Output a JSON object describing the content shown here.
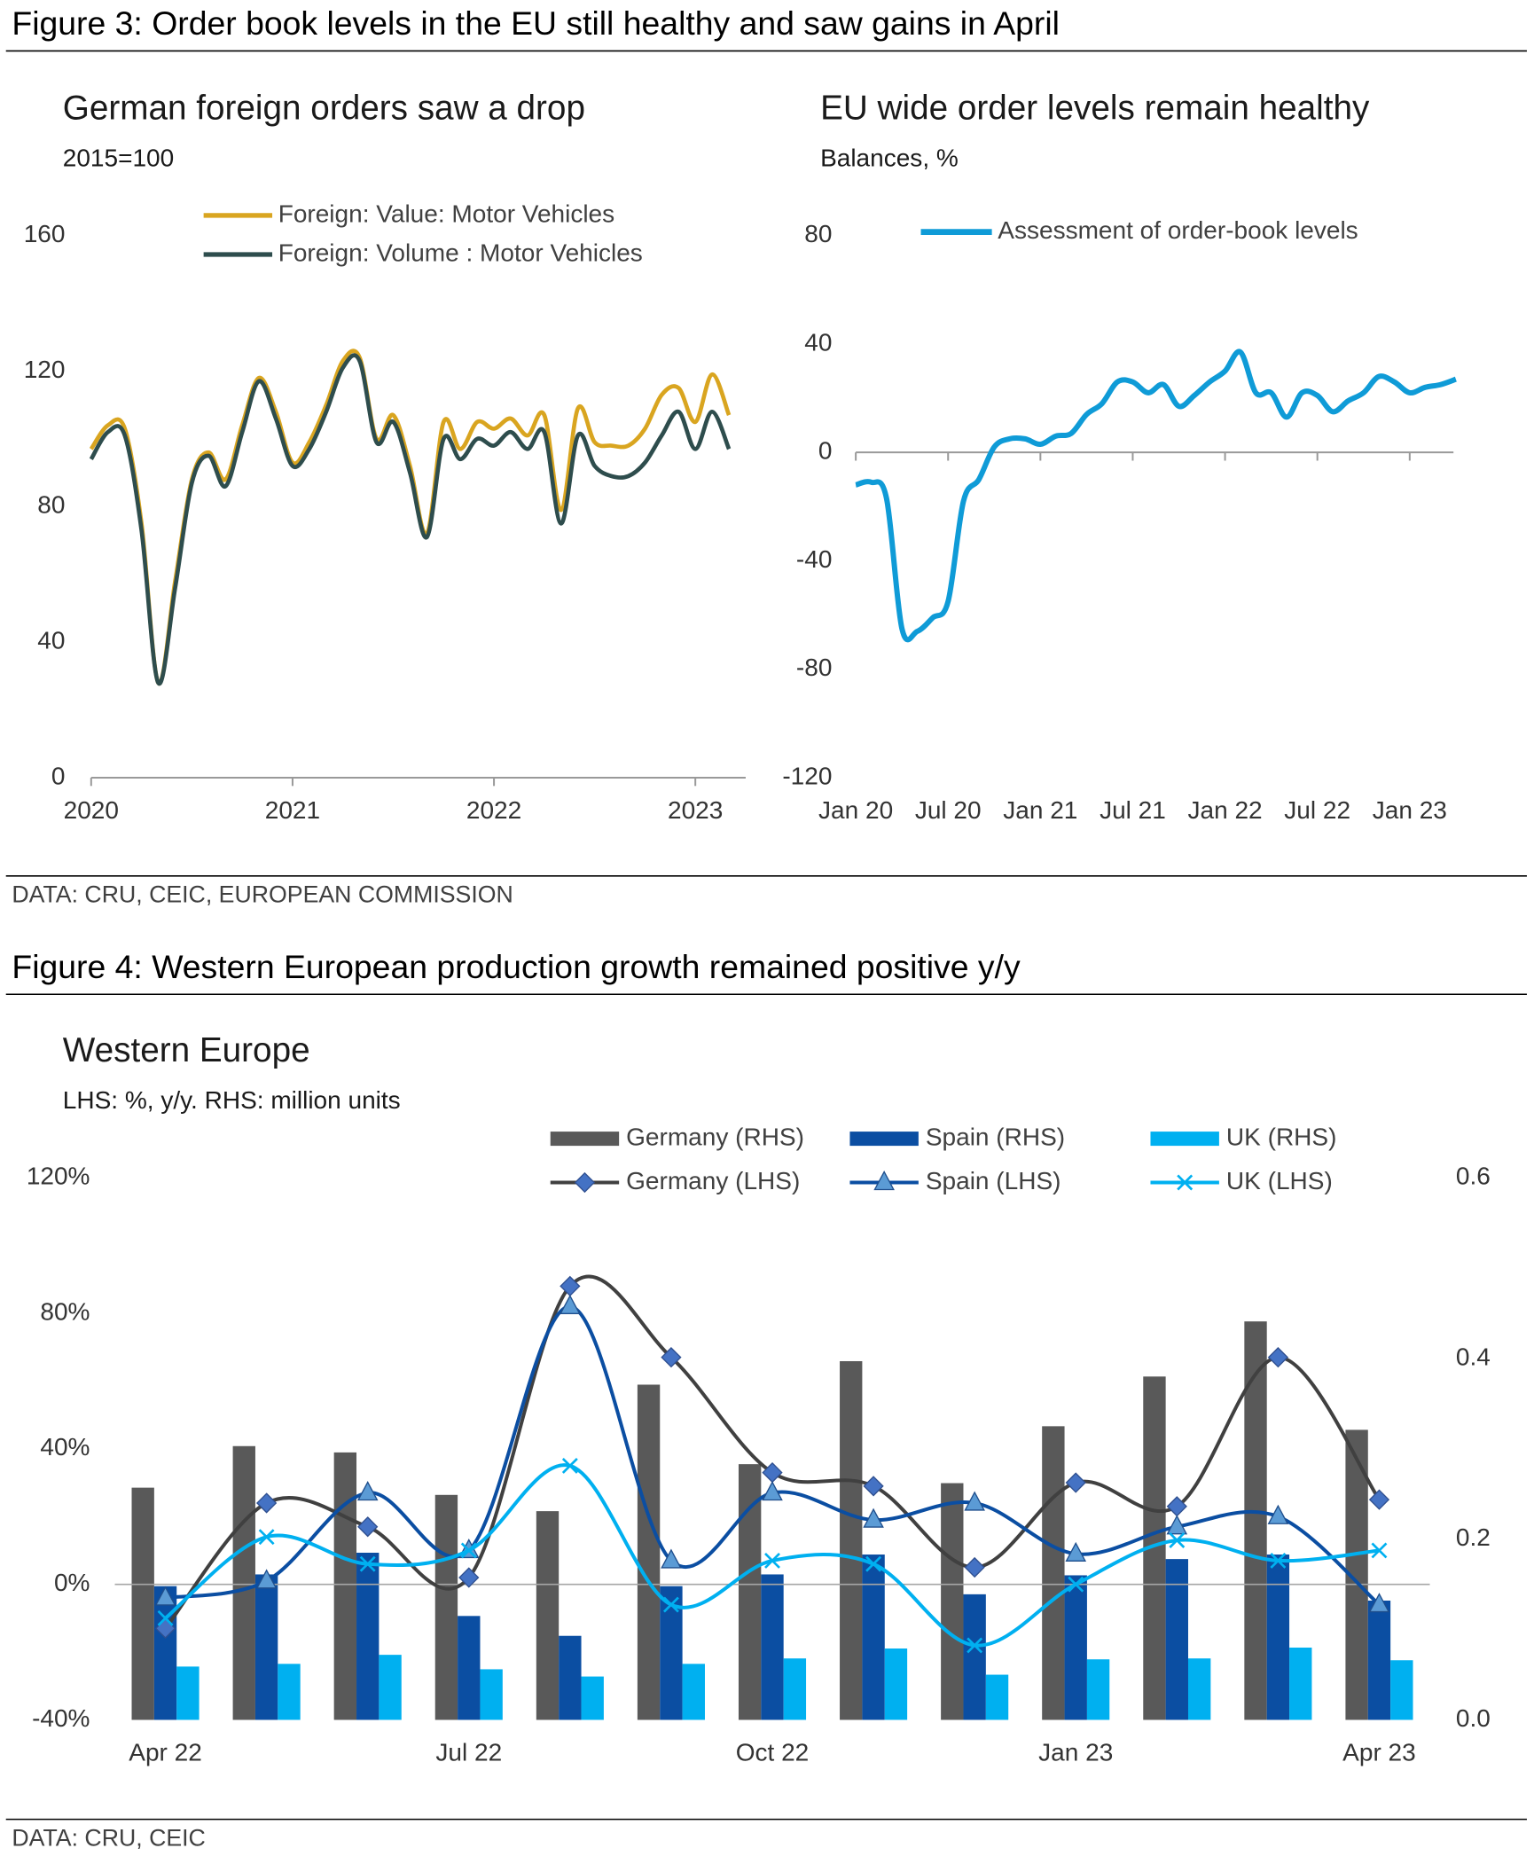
{
  "figures": [
    {
      "title": "Figure 3: Order book levels in the EU still healthy and saw gains in April",
      "source": "DATA: CRU, CEIC, EUROPEAN COMMISSION"
    },
    {
      "title": "Figure 4: Western European production growth remained positive y/y",
      "source": "DATA: CRU, CEIC"
    }
  ],
  "chart_data": [
    {
      "type": "line",
      "title": "German foreign orders saw a drop",
      "subtitle": "2015=100",
      "x": [
        2020,
        2020.083,
        2020.167,
        2020.25,
        2020.333,
        2020.417,
        2020.5,
        2020.583,
        2020.667,
        2020.75,
        2020.833,
        2020.917,
        2021,
        2021.083,
        2021.167,
        2021.25,
        2021.333,
        2021.417,
        2021.5,
        2021.583,
        2021.667,
        2021.75,
        2021.833,
        2021.917,
        2022,
        2022.083,
        2022.167,
        2022.25,
        2022.333,
        2022.417,
        2022.5,
        2022.583,
        2022.667,
        2022.75,
        2022.833,
        2022.917,
        2023,
        2023.083,
        2023.167
      ],
      "xlim": [
        2020,
        2023.25
      ],
      "xticks": [
        2020,
        2021,
        2022,
        2023
      ],
      "ylim": [
        0,
        160
      ],
      "yticks": [
        0,
        40,
        80,
        120,
        160
      ],
      "series": [
        {
          "name": "Foreign: Value: Motor Vehicles",
          "color": "#d9a520",
          "values": [
            97,
            104,
            103,
            75,
            28,
            58,
            88,
            96,
            88,
            104,
            118,
            108,
            93,
            99,
            110,
            123,
            124,
            100,
            107,
            92,
            72,
            105,
            97,
            105,
            103,
            106,
            101,
            107,
            79,
            109,
            99,
            98,
            98,
            103,
            113,
            115,
            105,
            119,
            107
          ]
        },
        {
          "name": "Foreign: Volume : Motor Vehicles",
          "color": "#2e4d4d",
          "values": [
            94,
            102,
            101,
            73,
            28,
            56,
            87,
            95,
            86,
            102,
            117,
            106,
            92,
            97,
            108,
            121,
            123,
            99,
            105,
            90,
            71,
            100,
            94,
            100,
            98,
            102,
            97,
            102,
            75,
            101,
            92,
            89,
            89,
            93,
            101,
            108,
            97,
            108,
            97
          ]
        }
      ]
    },
    {
      "type": "line",
      "title": "EU wide order levels remain healthy",
      "subtitle": "Balances, %",
      "categories": [
        "Jan 20",
        null,
        null,
        null,
        null,
        null,
        "Jul 20",
        null,
        null,
        null,
        null,
        null,
        "Jan 21",
        null,
        null,
        null,
        null,
        null,
        "Jul 21",
        null,
        null,
        null,
        null,
        null,
        "Jan 22",
        null,
        null,
        null,
        null,
        null,
        "Jul 22",
        null,
        null,
        null,
        null,
        null,
        "Jan 23",
        null,
        null,
        null
      ],
      "ylim": [
        -120,
        80
      ],
      "yticks": [
        -120,
        -80,
        -40,
        0,
        40,
        80
      ],
      "series": [
        {
          "name": "Assessment of order-book levels",
          "color": "#0f9bd7",
          "values": [
            -12,
            -11,
            -17,
            -65,
            -66,
            -61,
            -55,
            -18,
            -10,
            2,
            5,
            5,
            3,
            6,
            7,
            14,
            18,
            26,
            26,
            22,
            25,
            17,
            21,
            26,
            30,
            37,
            22,
            22,
            13,
            22,
            21,
            15,
            19,
            22,
            28,
            26,
            22,
            24,
            25,
            27
          ]
        }
      ]
    },
    {
      "type": "combo",
      "title": "Western Europe",
      "subtitle": "LHS: %, y/y. RHS: million units",
      "categories": [
        "Apr 22",
        null,
        null,
        "Jul 22",
        null,
        null,
        "Oct 22",
        null,
        null,
        "Jan 23",
        null,
        null,
        "Apr 23"
      ],
      "ylim": [
        -40,
        120
      ],
      "yticks": [
        {
          "value": -40,
          "label": "-40%"
        },
        {
          "value": 0,
          "label": "0%"
        },
        {
          "value": 40,
          "label": "40%"
        },
        {
          "value": 80,
          "label": "80%"
        },
        {
          "value": 120,
          "label": "120%"
        }
      ],
      "y2lim": [
        0,
        0.6
      ],
      "y2ticks": [
        {
          "value": 0,
          "label": "0.0"
        },
        0.2,
        0.4,
        0.6
      ],
      "series": [
        {
          "name": "Germany (RHS)",
          "type": "bar",
          "axis": "y2",
          "color": "#595959",
          "values": [
            0.257,
            0.303,
            0.296,
            0.249,
            0.231,
            0.371,
            0.283,
            0.397,
            0.262,
            0.325,
            0.38,
            0.441,
            0.321
          ]
        },
        {
          "name": "Spain (RHS)",
          "type": "bar",
          "axis": "y2",
          "color": "#0b4ea2",
          "values": [
            0.148,
            0.161,
            0.185,
            0.115,
            0.093,
            0.148,
            0.161,
            0.183,
            0.139,
            0.16,
            0.178,
            0.183,
            0.132
          ]
        },
        {
          "name": "UK (RHS)",
          "type": "bar",
          "axis": "y2",
          "color": "#00b0f0",
          "values": [
            0.059,
            0.062,
            0.072,
            0.056,
            0.048,
            0.062,
            0.068,
            0.079,
            0.05,
            0.067,
            0.068,
            0.08,
            0.066
          ]
        },
        {
          "name": "Germany (LHS)",
          "type": "line",
          "color": "#404040",
          "marker": "diamond",
          "marker_color": "#4472c4",
          "values": [
            -13,
            24,
            17,
            2,
            88,
            67,
            33,
            29,
            5,
            30,
            23,
            67,
            25
          ]
        },
        {
          "name": "Spain (LHS)",
          "type": "line",
          "color": "#0b4ea2",
          "marker": "triangle",
          "marker_color": "#5b9bd5",
          "values": [
            -4,
            1,
            27,
            10,
            82,
            7,
            27,
            19,
            24,
            9,
            17,
            20,
            -6
          ]
        },
        {
          "name": "UK (LHS)",
          "type": "line",
          "color": "#00b0f0",
          "marker": "x",
          "marker_color": "#00b0f0",
          "values": [
            -10,
            14,
            6,
            10,
            35,
            -6,
            7,
            6,
            -18,
            0,
            13,
            7,
            10
          ]
        }
      ]
    }
  ]
}
